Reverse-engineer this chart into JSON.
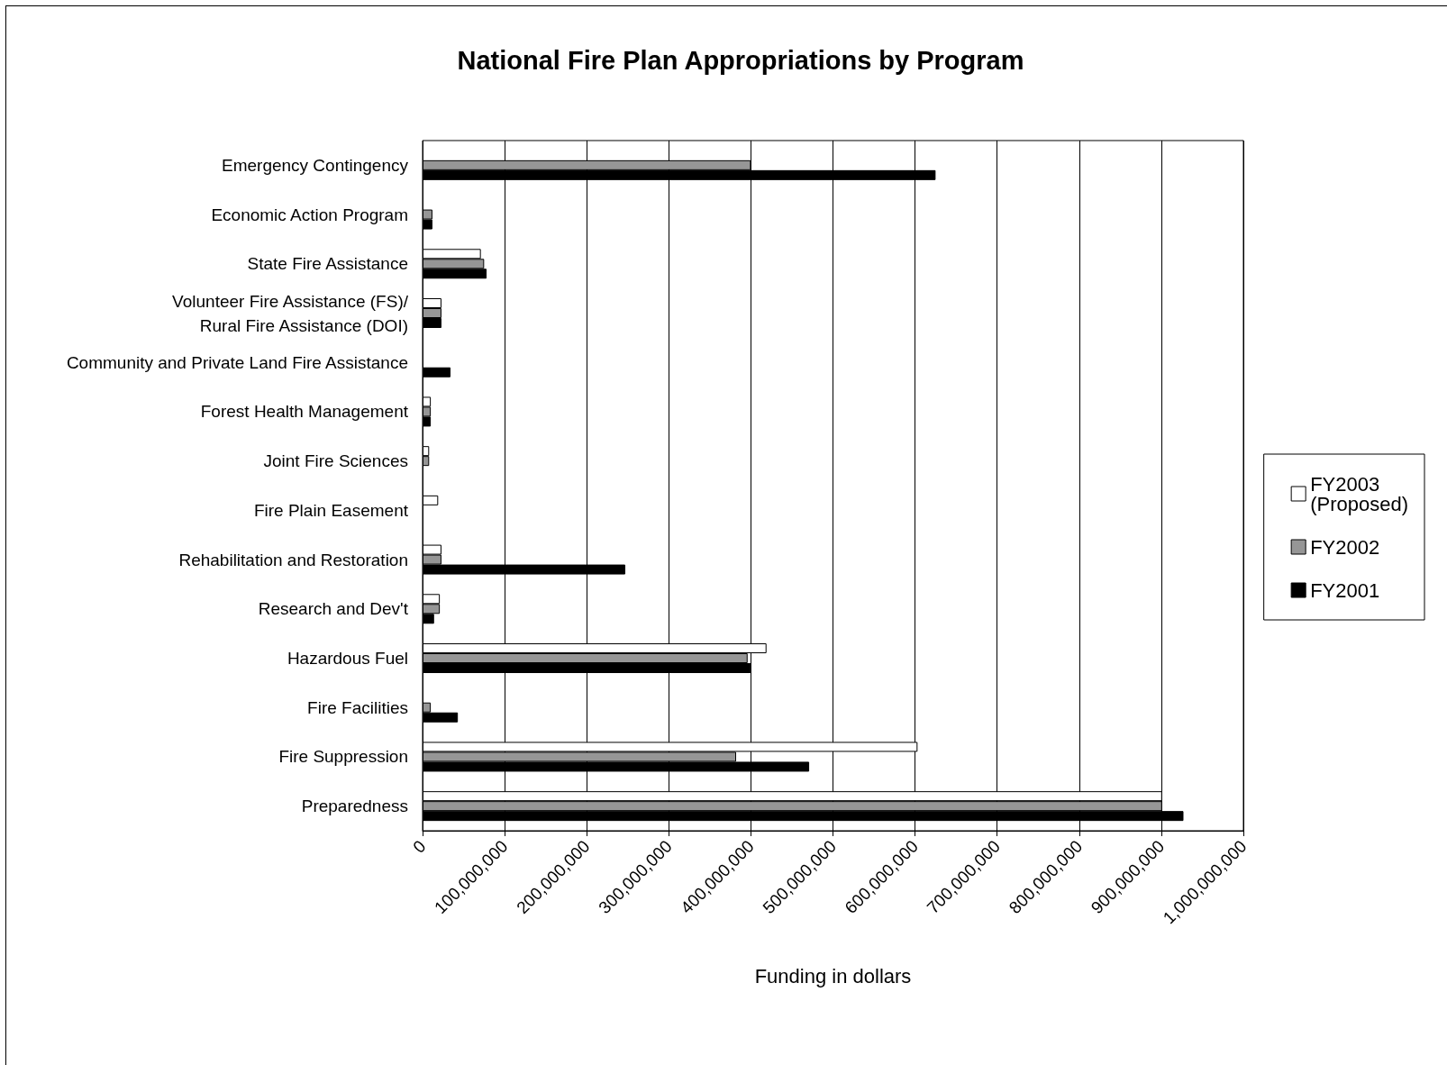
{
  "chart_data": {
    "type": "bar",
    "orientation": "horizontal",
    "title": "National Fire Plan Appropriations by Program",
    "xlabel": "Funding in dollars",
    "categories": [
      "Emergency Contingency",
      "Economic Action Program",
      "State Fire Assistance",
      "Volunteer Fire Assistance (FS)/\nRural Fire Assistance (DOI)",
      "Community and Private Land Fire Assistance",
      "Forest Health Management",
      "Joint Fire Sciences",
      "Fire Plain Easement",
      "Rehabilitation and Restoration",
      "Research and Dev't",
      "Hazardous Fuel",
      "Fire Facilities",
      "Fire Suppression",
      "Preparedness"
    ],
    "series": [
      {
        "name": "FY2003 (Proposed)",
        "color": "#ffffff",
        "values": [
          null,
          null,
          71000000,
          23000000,
          null,
          10000000,
          8000000,
          19000000,
          23000000,
          21000000,
          419000000,
          null,
          603000000,
          901000000
        ]
      },
      {
        "name": "FY2002",
        "color": "#969696",
        "values": [
          400000000,
          12000000,
          75000000,
          23000000,
          null,
          10000000,
          8000000,
          null,
          23000000,
          21000000,
          396000000,
          10000000,
          382000000,
          901000000
        ]
      },
      {
        "name": "FY2001",
        "color": "#000000",
        "values": [
          625000000,
          12000000,
          78000000,
          23000000,
          34000000,
          10000000,
          null,
          null,
          247000000,
          14000000,
          400000000,
          43000000,
          471000000,
          927000000
        ]
      }
    ],
    "xlim": [
      0,
      1000000000
    ],
    "xticks": [
      {
        "value": 0,
        "label": "0"
      },
      {
        "value": 100000000,
        "label": "100,000,000"
      },
      {
        "value": 200000000,
        "label": "200,000,000"
      },
      {
        "value": 300000000,
        "label": "300,000,000"
      },
      {
        "value": 400000000,
        "label": "400,000,000"
      },
      {
        "value": 500000000,
        "label": "500,000,000"
      },
      {
        "value": 600000000,
        "label": "600,000,000"
      },
      {
        "value": 700000000,
        "label": "700,000,000"
      },
      {
        "value": 800000000,
        "label": "800,000,000"
      },
      {
        "value": 900000000,
        "label": "900,000,000"
      },
      {
        "value": 1000000000,
        "label": "1,000,000,000"
      }
    ],
    "grid": "x",
    "legend": "right"
  }
}
